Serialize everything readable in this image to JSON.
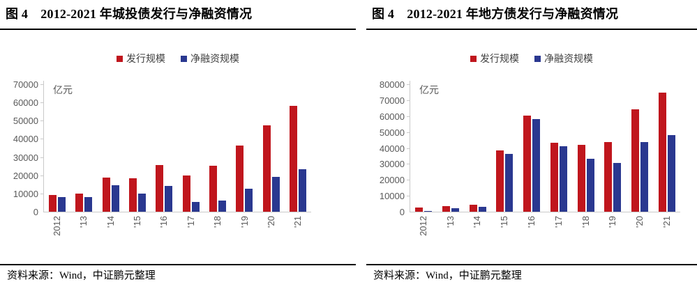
{
  "colors": {
    "issuance_red": "#C0161D",
    "net_financing_blue": "#2A3890",
    "axis_gray": "#C9C9C9",
    "tick_text_gray": "#595959",
    "rule_black": "#000000"
  },
  "footer": {
    "source_note": "资料来源：Wind，中证鹏元整理"
  },
  "chart_data": [
    {
      "type": "bar",
      "title": "图 4　2012-2021 年城投债发行与净融资情况",
      "unit": "亿元",
      "categories": [
        "2012",
        "'13",
        "'14",
        "'15",
        "'16",
        "'17",
        "'18",
        "'19",
        "'20",
        "'21"
      ],
      "series": [
        {
          "name": "发行规模",
          "color": "#C0161D",
          "values": [
            9100,
            9900,
            18900,
            18200,
            25700,
            19900,
            25100,
            36400,
            47400,
            58200
          ]
        },
        {
          "name": "净融资规模",
          "color": "#2A3890",
          "values": [
            8100,
            7900,
            14700,
            9800,
            14300,
            5500,
            6100,
            12700,
            19000,
            23400
          ]
        }
      ],
      "ylim": [
        0,
        70000
      ],
      "ytick_step": 10000,
      "grid": false,
      "legend_position": "top"
    },
    {
      "type": "bar",
      "title": "图 4　2012-2021 年地方债发行与净融资情况",
      "unit": "亿元",
      "categories": [
        "2012",
        "'13",
        "'14",
        "'15",
        "'16",
        "'17",
        "'18",
        "'19",
        "'20",
        "'21"
      ],
      "series": [
        {
          "name": "发行规模",
          "color": "#C0161D",
          "values": [
            2600,
            3600,
            4200,
            38600,
            60500,
            43500,
            41800,
            43600,
            64400,
            74900
          ]
        },
        {
          "name": "净融资规模",
          "color": "#2A3890",
          "values": [
            600,
            2300,
            3000,
            36500,
            58300,
            41000,
            33300,
            30700,
            43600,
            48100
          ]
        }
      ],
      "ylim": [
        0,
        80000
      ],
      "ytick_step": 10000,
      "grid": false,
      "legend_position": "top"
    }
  ]
}
